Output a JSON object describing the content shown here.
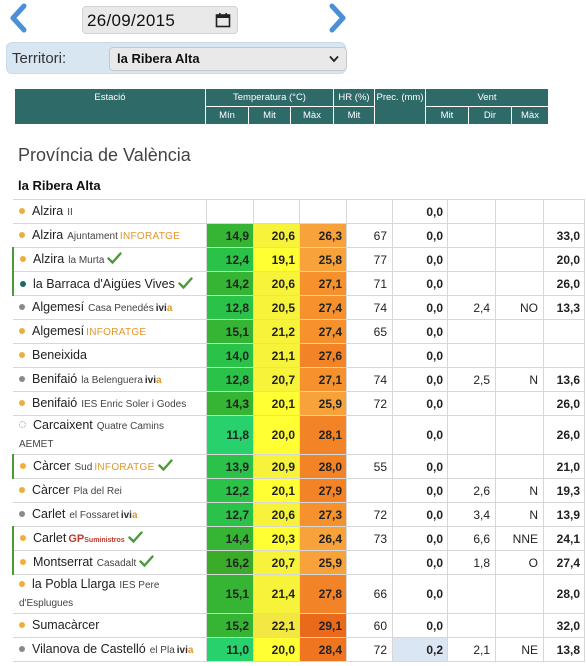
{
  "date": {
    "value": "26/09/2015"
  },
  "territori": {
    "label": "Territori:",
    "selected": "la Ribera Alta"
  },
  "table_header": {
    "estacio": "Estació",
    "temperatura": "Temperatura (°C)",
    "hr": "HR (%)",
    "prec": "Prec. (mm)",
    "vent": "Vent",
    "t_min": "Mín",
    "t_mit": "Mit",
    "t_max": "Màx",
    "hr_mit": "Mit",
    "v_mit": "Mit",
    "v_dir": "Dir",
    "v_max": "Màx"
  },
  "province": "Província de València",
  "region": "la Ribera Alta",
  "colors": {
    "header": "#2e6a68",
    "dot_orange": "#f0ad3c",
    "dot_gray": "#8a8a8a",
    "dot_teal": "#1e6b62",
    "check": "#4d9a3a"
  },
  "stations": [
    {
      "name": "Alzira",
      "sub": "II",
      "tag": "",
      "check": false,
      "dot": "orange",
      "row_h": 1,
      "tmin": "",
      "tmit": "",
      "tmax": "",
      "hr": "",
      "prec": "0,0",
      "vmit": "",
      "vdir": "",
      "vmax": ""
    },
    {
      "name": "Alzira",
      "sub": "Ajuntament",
      "tag": "INFORATGE",
      "check": false,
      "dot": "orange",
      "row_h": 1,
      "tmin": "14,9",
      "tmit": "20,6",
      "tmax": "26,3",
      "hr": "67",
      "prec": "0,0",
      "vmit": "",
      "vdir": "",
      "vmax": "33,0"
    },
    {
      "name": "Alzira",
      "sub": "la Murta",
      "tag": "",
      "check": true,
      "dot": "orange",
      "row_h": 1,
      "tmin": "12,4",
      "tmit": "19,1",
      "tmax": "25,8",
      "hr": "77",
      "prec": "0,0",
      "vmit": "",
      "vdir": "",
      "vmax": "20,0"
    },
    {
      "name": "la Barraca d'Aigües Vives",
      "sub": "",
      "tag": "",
      "check": true,
      "dot": "teal",
      "row_h": 1,
      "tmin": "14,2",
      "tmit": "20,6",
      "tmax": "27,1",
      "hr": "71",
      "prec": "0,0",
      "vmit": "",
      "vdir": "",
      "vmax": "26,0"
    },
    {
      "name": "Algemesí",
      "sub": "Casa Penedés",
      "tag": "ivia",
      "check": false,
      "dot": "gray",
      "row_h": 1,
      "tmin": "12,8",
      "tmit": "20,5",
      "tmax": "27,4",
      "hr": "74",
      "prec": "0,0",
      "vmit": "2,4",
      "vdir": "NO",
      "vmax": "13,3"
    },
    {
      "name": "Algemesí",
      "sub": "",
      "tag": "INFORATGE",
      "check": false,
      "dot": "orange",
      "row_h": 1,
      "tmin": "15,1",
      "tmit": "21,2",
      "tmax": "27,4",
      "hr": "65",
      "prec": "0,0",
      "vmit": "",
      "vdir": "",
      "vmax": ""
    },
    {
      "name": "Beneixida",
      "sub": "",
      "tag": "",
      "check": false,
      "dot": "orange",
      "row_h": 1,
      "tmin": "14,0",
      "tmit": "21,1",
      "tmax": "27,6",
      "hr": "",
      "prec": "0,0",
      "vmit": "",
      "vdir": "",
      "vmax": ""
    },
    {
      "name": "Benifaió",
      "sub": "la Belenguera",
      "tag": "ivia",
      "check": false,
      "dot": "gray",
      "row_h": 1,
      "tmin": "12,8",
      "tmit": "20,7",
      "tmax": "27,1",
      "hr": "74",
      "prec": "0,0",
      "vmit": "2,5",
      "vdir": "N",
      "vmax": "13,6"
    },
    {
      "name": "Benifaió",
      "sub": "IES Enric Soler i Godes",
      "tag": "",
      "check": false,
      "dot": "orange",
      "row_h": 1,
      "tmin": "14,3",
      "tmit": "20,1",
      "tmax": "25,9",
      "hr": "72",
      "prec": "0,0",
      "vmit": "",
      "vdir": "",
      "vmax": "26,0"
    },
    {
      "name": "Carcaixent",
      "sub": "Quatre Camins",
      "sub2": "AEMET",
      "tag": "",
      "check": false,
      "dot": "hollow",
      "row_h": 2,
      "tmin": "11,8",
      "tmit": "20,0",
      "tmax": "28,1",
      "hr": "",
      "prec": "0,0",
      "vmit": "",
      "vdir": "",
      "vmax": "26,0"
    },
    {
      "name": "Càrcer",
      "sub": "Sud",
      "tag": "INFORATGE",
      "check": true,
      "dot": "orange",
      "row_h": 1,
      "tmin": "13,9",
      "tmit": "20,9",
      "tmax": "28,0",
      "hr": "55",
      "prec": "0,0",
      "vmit": "",
      "vdir": "",
      "vmax": "21,0"
    },
    {
      "name": "Càrcer",
      "sub": "Pla del Rei",
      "tag": "",
      "check": false,
      "dot": "orange",
      "row_h": 1,
      "tmin": "12,2",
      "tmit": "20,1",
      "tmax": "27,9",
      "hr": "",
      "prec": "0,0",
      "vmit": "2,6",
      "vdir": "N",
      "vmax": "19,3"
    },
    {
      "name": "Carlet",
      "sub": "el Fossaret",
      "tag": "ivia",
      "check": false,
      "dot": "gray",
      "row_h": 1,
      "tmin": "12,7",
      "tmit": "20,6",
      "tmax": "27,3",
      "hr": "72",
      "prec": "0,0",
      "vmit": "3,4",
      "vdir": "N",
      "vmax": "13,9"
    },
    {
      "name": "Carlet",
      "sub": "",
      "tag": "GP",
      "check": true,
      "dot": "orange",
      "row_h": 1,
      "tmin": "14,4",
      "tmit": "20,3",
      "tmax": "26,4",
      "hr": "73",
      "prec": "0,0",
      "vmit": "6,6",
      "vdir": "NNE",
      "vmax": "24,1"
    },
    {
      "name": "Montserrat",
      "sub": "Casadalt",
      "tag": "",
      "check": true,
      "dot": "orange",
      "row_h": 1,
      "tmin": "16,2",
      "tmit": "20,7",
      "tmax": "25,9",
      "hr": "",
      "prec": "0,0",
      "vmit": "1,8",
      "vdir": "O",
      "vmax": "27,4"
    },
    {
      "name": "la Pobla Llarga",
      "sub": "IES Pere",
      "sub2": "d'Esplugues",
      "tag": "",
      "check": false,
      "dot": "orange",
      "row_h": 2,
      "tmin": "15,1",
      "tmit": "21,4",
      "tmax": "27,8",
      "hr": "66",
      "prec": "0,0",
      "vmit": "",
      "vdir": "",
      "vmax": "28,0"
    },
    {
      "name": "Sumacàrcer",
      "sub": "",
      "tag": "",
      "check": false,
      "dot": "orange",
      "row_h": 1,
      "tmin": "15,2",
      "tmit": "22,1",
      "tmax": "29,1",
      "hr": "60",
      "prec": "0,0",
      "vmit": "",
      "vdir": "",
      "vmax": "32,0"
    },
    {
      "name": "Vilanova de Castelló",
      "sub": "el Pla",
      "tag": "ivia",
      "check": false,
      "dot": "gray",
      "row_h": 1,
      "tmin": "11,0",
      "tmit": "20,0",
      "tmax": "28,4",
      "hr": "72",
      "prec": "0,2",
      "vmit": "2,1",
      "vdir": "NE",
      "vmax": "13,8"
    }
  ],
  "gp_small": "Suministros"
}
